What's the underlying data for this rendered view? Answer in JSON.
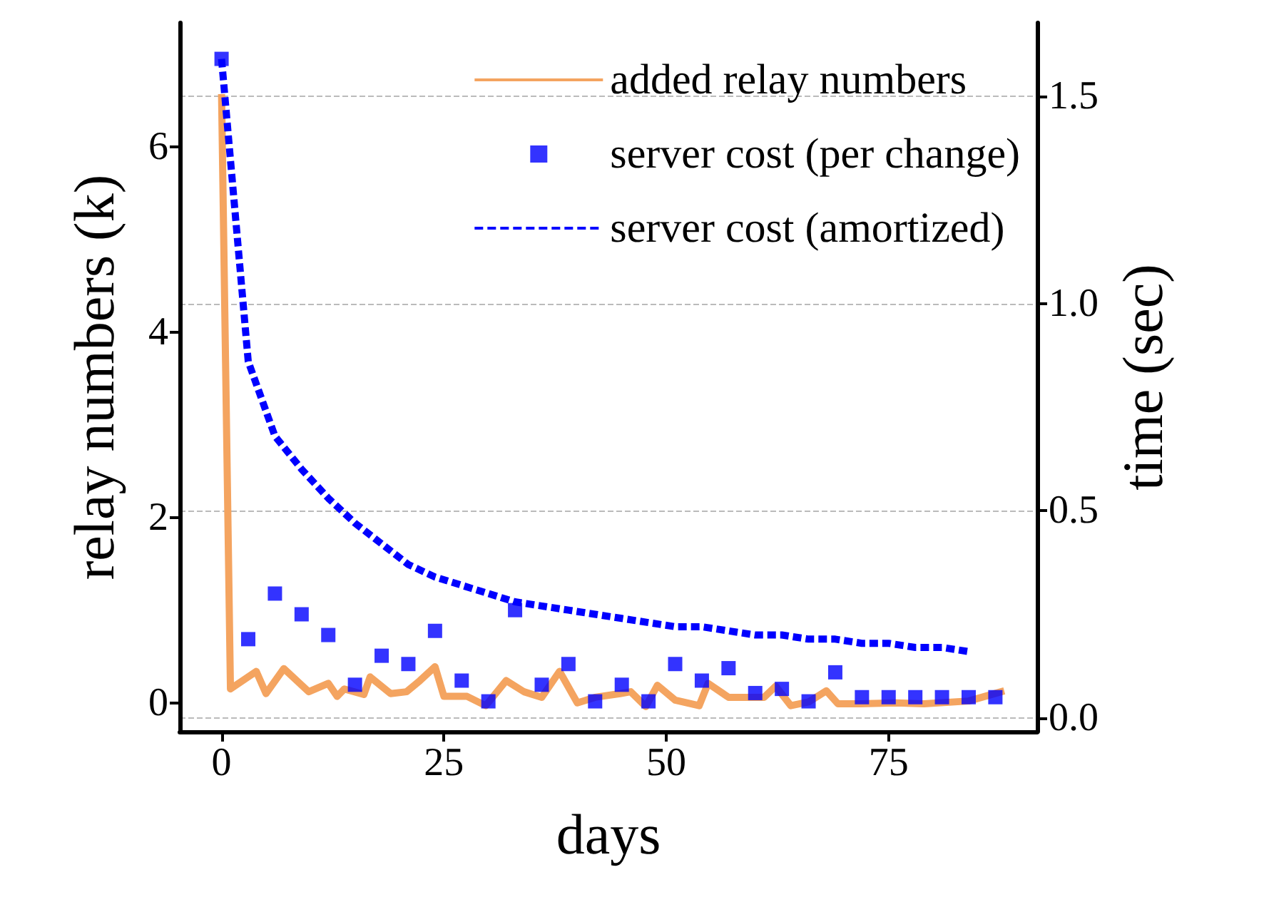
{
  "chart_data": {
    "type": "line",
    "xlabel": "days",
    "ylabel": "relay numbers (k)",
    "y2label": "time (sec)",
    "xlim": [
      -4.7,
      91.7
    ],
    "xticks": [
      0,
      25,
      50,
      75
    ],
    "ylim": [
      -0.31,
      7.34
    ],
    "yticks": [
      0,
      2,
      4,
      6
    ],
    "y2lim": [
      -0.033,
      1.677
    ],
    "y2ticks": [
      {
        "value": 0,
        "label": "0.0"
      },
      {
        "value": 0.5,
        "label": "0.5"
      },
      {
        "value": 1,
        "label": "1.0"
      },
      {
        "value": 1.5,
        "label": "1.5"
      }
    ],
    "grid": "y",
    "legend": "top right",
    "series": [
      {
        "name": "added relay numbers",
        "color": "#f4a460",
        "marker": "none",
        "line_style": "solid",
        "x": [
          0,
          1,
          3.9,
          5,
          7,
          9.8,
          12,
          13,
          13.8,
          16,
          16.7,
          19,
          20.8,
          22.3,
          24,
          25,
          27.6,
          29.7,
          32,
          34,
          36,
          38,
          40,
          42,
          44.8,
          46,
          47.7,
          49,
          51,
          53.7,
          54.7,
          57,
          59,
          61,
          62.3,
          64,
          66,
          68,
          69.3,
          71.8,
          75.8,
          79,
          84,
          88
        ],
        "values": [
          6.57,
          0.15,
          0.34,
          0.1,
          0.37,
          0.12,
          0.21,
          0.07,
          0.15,
          0.09,
          0.28,
          0.1,
          0.12,
          0.24,
          0.39,
          0.07,
          0.07,
          -0.03,
          0.24,
          0.12,
          0.06,
          0.34,
          0.0,
          0.06,
          0.1,
          0.12,
          -0.04,
          0.19,
          0.03,
          -0.03,
          0.21,
          0.06,
          0.06,
          0.06,
          0.18,
          -0.03,
          0.01,
          0.13,
          -0.01,
          -0.01,
          0.0,
          -0.01,
          0.02,
          0.13
        ]
      },
      {
        "name": "server cost (per change)",
        "type": "scatter",
        "axis": "y2",
        "color": "#0000ff",
        "marker": "square",
        "x": [
          0,
          3,
          6,
          9,
          12,
          15,
          18,
          21,
          24,
          27,
          30,
          33,
          36,
          39,
          42,
          45,
          48,
          51,
          54,
          57,
          60,
          63,
          66,
          69,
          72,
          75,
          78,
          81,
          84,
          87
        ],
        "values": [
          1.59,
          0.19,
          0.3,
          0.25,
          0.2,
          0.08,
          0.15,
          0.13,
          0.21,
          0.09,
          0.04,
          0.26,
          0.08,
          0.13,
          0.04,
          0.08,
          0.04,
          0.13,
          0.09,
          0.12,
          0.06,
          0.07,
          0.04,
          0.11,
          0.05,
          0.05,
          0.05,
          0.05,
          0.05,
          0.05
        ]
      },
      {
        "name": "server cost (amortized)",
        "axis": "y2",
        "color": "#0000ff",
        "marker": "none",
        "line_style": "dashed",
        "x": [
          0,
          3,
          6,
          9,
          12,
          15,
          18,
          21,
          24,
          27,
          30,
          33,
          36,
          39,
          42,
          45,
          48,
          51,
          54,
          57,
          60,
          63,
          66,
          69,
          72,
          75,
          78,
          81,
          84
        ],
        "values": [
          1.59,
          0.86,
          0.68,
          0.6,
          0.53,
          0.47,
          0.42,
          0.37,
          0.34,
          0.32,
          0.3,
          0.28,
          0.27,
          0.26,
          0.25,
          0.24,
          0.23,
          0.22,
          0.22,
          0.21,
          0.2,
          0.2,
          0.19,
          0.19,
          0.18,
          0.18,
          0.17,
          0.17,
          0.16
        ]
      }
    ]
  }
}
